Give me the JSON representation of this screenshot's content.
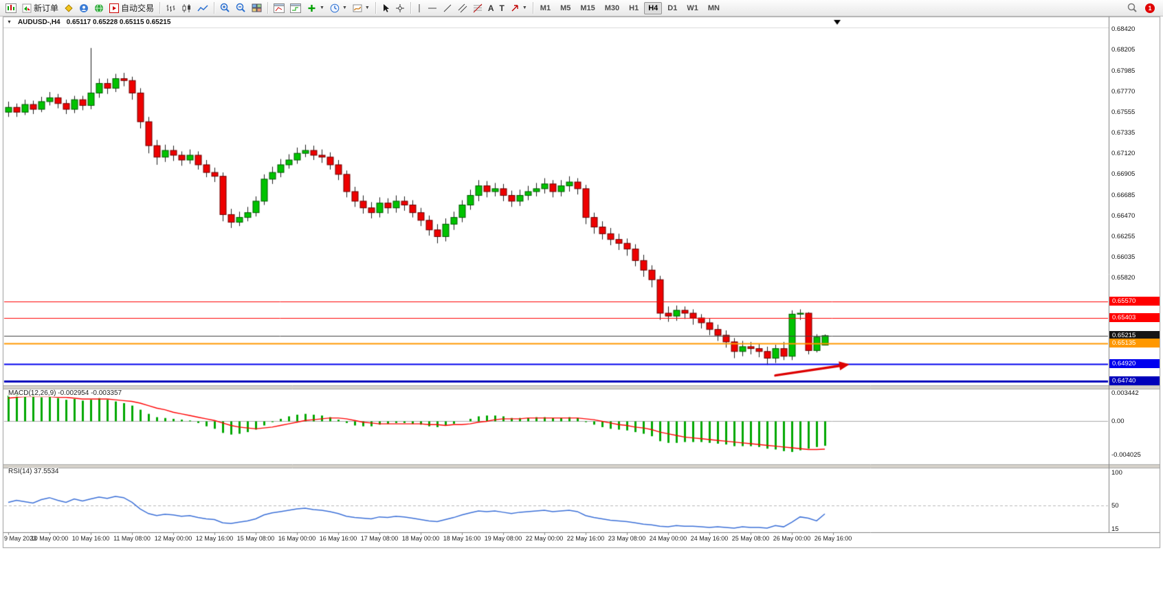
{
  "toolbar": {
    "new_order_label": "新订单",
    "auto_trading_label": "自动交易",
    "text_tool_label": "A",
    "label_tool_label": "T",
    "timeframes": [
      "M1",
      "M5",
      "M15",
      "M30",
      "H1",
      "H4",
      "D1",
      "W1",
      "MN"
    ],
    "active_timeframe": "H4",
    "notification_count": "1"
  },
  "chart": {
    "symbol_period": "AUDUSD-,H4",
    "ohlc_values": "0.65117 0.65228 0.65115 0.65215"
  },
  "price_axis": {
    "grid_labels": [
      "0.68420",
      "0.68205",
      "0.67985",
      "0.67770",
      "0.67555",
      "0.67335",
      "0.67120",
      "0.66905",
      "0.66685",
      "0.66470",
      "0.66255",
      "0.66035",
      "0.65820"
    ],
    "level_boxes": [
      {
        "text": "0.65570",
        "bg": "#ff0000"
      },
      {
        "text": "0.65403",
        "bg": "#ff0000"
      },
      {
        "text": "0.65215",
        "bg": "#151515"
      },
      {
        "text": "0.65135",
        "bg": "#ff9800"
      },
      {
        "text": "0.64920",
        "bg": "#0000ee"
      },
      {
        "text": "0.64740",
        "bg": "#0000bb"
      }
    ]
  },
  "indicators": {
    "macd_label": "MACD(12,26,9) -0.002954 -0.003357",
    "macd_scale": [
      "0.003442",
      "0.00",
      "-0.004025"
    ],
    "rsi_label": "RSI(14) 37.5534",
    "rsi_scale": [
      "100",
      "50",
      "15"
    ]
  },
  "time_axis": [
    "9 May 2023",
    "10 May 00:00",
    "10 May 16:00",
    "11 May 08:00",
    "12 May 00:00",
    "12 May 16:00",
    "15 May 08:00",
    "16 May 00:00",
    "16 May 16:00",
    "17 May 08:00",
    "18 May 00:00",
    "18 May 16:00",
    "19 May 08:00",
    "22 May 00:00",
    "22 May 16:00",
    "23 May 08:00",
    "24 May 00:00",
    "24 May 16:00",
    "25 May 08:00",
    "26 May 00:00",
    "26 May 16:00"
  ],
  "chart_data": {
    "type": "candlestick",
    "symbol": "AUDUSD-",
    "timeframe": "H4",
    "price_range": [
      0.6474,
      0.6842
    ],
    "current_bid": 0.65215,
    "top_marker_candle": 100.5,
    "candles": [
      [
        0.6755,
        0.6766,
        0.675,
        0.676
      ],
      [
        0.676,
        0.6764,
        0.675,
        0.6755
      ],
      [
        0.6755,
        0.6768,
        0.6752,
        0.6763
      ],
      [
        0.6763,
        0.6767,
        0.6753,
        0.6758
      ],
      [
        0.6758,
        0.6771,
        0.6755,
        0.6766
      ],
      [
        0.6766,
        0.6776,
        0.6762,
        0.677
      ],
      [
        0.677,
        0.6774,
        0.6759,
        0.6764
      ],
      [
        0.6764,
        0.6768,
        0.6753,
        0.6758
      ],
      [
        0.6758,
        0.6772,
        0.6754,
        0.6768
      ],
      [
        0.6768,
        0.6772,
        0.6757,
        0.6762
      ],
      [
        0.6762,
        0.6822,
        0.6758,
        0.6775
      ],
      [
        0.6775,
        0.679,
        0.677,
        0.6785
      ],
      [
        0.6785,
        0.679,
        0.6774,
        0.678
      ],
      [
        0.678,
        0.6795,
        0.6776,
        0.679
      ],
      [
        0.679,
        0.6796,
        0.6782,
        0.6788
      ],
      [
        0.6788,
        0.6792,
        0.6768,
        0.6775
      ],
      [
        0.6775,
        0.678,
        0.6738,
        0.6745
      ],
      [
        0.6745,
        0.675,
        0.6712,
        0.672
      ],
      [
        0.672,
        0.6726,
        0.67,
        0.6708
      ],
      [
        0.6708,
        0.6721,
        0.6703,
        0.6715
      ],
      [
        0.6715,
        0.672,
        0.6704,
        0.671
      ],
      [
        0.671,
        0.6714,
        0.6699,
        0.6705
      ],
      [
        0.6705,
        0.6716,
        0.6701,
        0.671
      ],
      [
        0.671,
        0.6714,
        0.6695,
        0.67
      ],
      [
        0.67,
        0.6705,
        0.6687,
        0.6692
      ],
      [
        0.6692,
        0.6697,
        0.6682,
        0.6688
      ],
      [
        0.6688,
        0.6692,
        0.6641,
        0.6648
      ],
      [
        0.6648,
        0.6654,
        0.6634,
        0.664
      ],
      [
        0.664,
        0.6651,
        0.6636,
        0.6645
      ],
      [
        0.6645,
        0.6656,
        0.6641,
        0.665
      ],
      [
        0.665,
        0.6667,
        0.6646,
        0.6662
      ],
      [
        0.6662,
        0.669,
        0.6658,
        0.6685
      ],
      [
        0.6685,
        0.6698,
        0.668,
        0.6692
      ],
      [
        0.6692,
        0.6706,
        0.6687,
        0.67
      ],
      [
        0.67,
        0.6711,
        0.6696,
        0.6705
      ],
      [
        0.6705,
        0.6718,
        0.6701,
        0.6712
      ],
      [
        0.6712,
        0.6721,
        0.6708,
        0.6715
      ],
      [
        0.6715,
        0.672,
        0.6705,
        0.671
      ],
      [
        0.671,
        0.6716,
        0.6702,
        0.6708
      ],
      [
        0.6708,
        0.6713,
        0.6695,
        0.67
      ],
      [
        0.67,
        0.6705,
        0.6684,
        0.669
      ],
      [
        0.669,
        0.6694,
        0.6666,
        0.6672
      ],
      [
        0.6672,
        0.6677,
        0.6656,
        0.6662
      ],
      [
        0.6662,
        0.6668,
        0.6649,
        0.6655
      ],
      [
        0.6655,
        0.6661,
        0.6644,
        0.665
      ],
      [
        0.665,
        0.6666,
        0.6645,
        0.666
      ],
      [
        0.666,
        0.6665,
        0.6649,
        0.6655
      ],
      [
        0.6655,
        0.6668,
        0.665,
        0.6662
      ],
      [
        0.6662,
        0.6667,
        0.6652,
        0.6658
      ],
      [
        0.6658,
        0.6663,
        0.6645,
        0.665
      ],
      [
        0.665,
        0.6655,
        0.6636,
        0.6642
      ],
      [
        0.6642,
        0.6647,
        0.6626,
        0.6632
      ],
      [
        0.6632,
        0.6638,
        0.6618,
        0.6625
      ],
      [
        0.6625,
        0.6644,
        0.662,
        0.6638
      ],
      [
        0.6638,
        0.6651,
        0.6632,
        0.6645
      ],
      [
        0.6645,
        0.6663,
        0.664,
        0.6658
      ],
      [
        0.6658,
        0.6674,
        0.6653,
        0.6668
      ],
      [
        0.6668,
        0.6684,
        0.6662,
        0.6678
      ],
      [
        0.6678,
        0.6683,
        0.6666,
        0.6672
      ],
      [
        0.6672,
        0.6681,
        0.6667,
        0.6675
      ],
      [
        0.6675,
        0.668,
        0.6662,
        0.6668
      ],
      [
        0.6668,
        0.6673,
        0.6656,
        0.6662
      ],
      [
        0.6662,
        0.6674,
        0.6657,
        0.6668
      ],
      [
        0.6668,
        0.6678,
        0.6663,
        0.6672
      ],
      [
        0.6672,
        0.6681,
        0.6667,
        0.6675
      ],
      [
        0.6675,
        0.6686,
        0.667,
        0.668
      ],
      [
        0.668,
        0.6684,
        0.6666,
        0.6672
      ],
      [
        0.6672,
        0.6684,
        0.6667,
        0.6678
      ],
      [
        0.6678,
        0.6688,
        0.6672,
        0.6682
      ],
      [
        0.6682,
        0.6686,
        0.6669,
        0.6675
      ],
      [
        0.6675,
        0.6679,
        0.6638,
        0.6645
      ],
      [
        0.6645,
        0.665,
        0.6628,
        0.6635
      ],
      [
        0.6635,
        0.6641,
        0.6622,
        0.6628
      ],
      [
        0.6628,
        0.6634,
        0.6616,
        0.6622
      ],
      [
        0.6622,
        0.6628,
        0.6611,
        0.6618
      ],
      [
        0.6618,
        0.6623,
        0.6605,
        0.6612
      ],
      [
        0.6612,
        0.6617,
        0.6594,
        0.66
      ],
      [
        0.66,
        0.6606,
        0.6583,
        0.659
      ],
      [
        0.659,
        0.6595,
        0.6572,
        0.658
      ],
      [
        0.658,
        0.6584,
        0.6538,
        0.6545
      ],
      [
        0.6545,
        0.6552,
        0.6536,
        0.6542
      ],
      [
        0.6542,
        0.6553,
        0.6537,
        0.6548
      ],
      [
        0.6548,
        0.6552,
        0.6539,
        0.6545
      ],
      [
        0.6545,
        0.6549,
        0.6533,
        0.654
      ],
      [
        0.654,
        0.6544,
        0.6529,
        0.6535
      ],
      [
        0.6535,
        0.654,
        0.6522,
        0.6528
      ],
      [
        0.6528,
        0.6533,
        0.6516,
        0.6522
      ],
      [
        0.6522,
        0.6527,
        0.6509,
        0.6515
      ],
      [
        0.6515,
        0.6519,
        0.6498,
        0.6505
      ],
      [
        0.6505,
        0.6516,
        0.65,
        0.651
      ],
      [
        0.651,
        0.6515,
        0.6502,
        0.6508
      ],
      [
        0.6508,
        0.6513,
        0.6499,
        0.6505
      ],
      [
        0.6505,
        0.651,
        0.6491,
        0.6498
      ],
      [
        0.6498,
        0.6512,
        0.6493,
        0.6508
      ],
      [
        0.6508,
        0.6515,
        0.6496,
        0.65
      ],
      [
        0.65,
        0.6548,
        0.6496,
        0.6544
      ],
      [
        0.6544,
        0.6549,
        0.6538,
        0.6545
      ],
      [
        0.6545,
        0.6546,
        0.6502,
        0.6506
      ],
      [
        0.6506,
        0.6523,
        0.6504,
        0.652
      ],
      [
        0.65117,
        0.65228,
        0.65115,
        0.65215
      ]
    ],
    "hlines": [
      {
        "price": 0.6557,
        "color": "#ff0000",
        "width": 1,
        "style": "solid"
      },
      {
        "price": 0.65403,
        "color": "#ff0000",
        "width": 1,
        "style": "solid"
      },
      {
        "price": 0.65215,
        "color": "#404040",
        "width": 1,
        "style": "solid"
      },
      {
        "price": 0.65135,
        "color": "#ff9800",
        "width": 2,
        "style": "solid"
      },
      {
        "price": 0.6492,
        "color": "#0000ee",
        "width": 2,
        "style": "solid"
      },
      {
        "price": 0.6474,
        "color": "#0000bb",
        "width": 3,
        "style": "solid"
      }
    ],
    "arrow_annotation": {
      "from_candle": 93,
      "from_price": 0.648,
      "to_candle": 102,
      "to_price": 0.64915,
      "color": "#dd0000"
    },
    "macd": {
      "range": [
        -0.004025,
        0.003442
      ],
      "histogram": [
        0.0031,
        0.0033,
        0.003,
        0.0032,
        0.0029,
        0.003,
        0.0028,
        0.0026,
        0.0027,
        0.0025,
        0.0026,
        0.0028,
        0.0026,
        0.0024,
        0.0022,
        0.0019,
        0.0014,
        0.0009,
        0.0005,
        0.0004,
        0.0003,
        0.0002,
        0.0001,
        -0.0002,
        -0.0006,
        -0.0009,
        -0.0014,
        -0.0016,
        -0.0015,
        -0.0013,
        -0.001,
        -0.0005,
        -0.0001,
        0.0003,
        0.0006,
        0.0008,
        0.0009,
        0.0008,
        0.0007,
        0.0005,
        0.0002,
        -0.0002,
        -0.0005,
        -0.0006,
        -0.0006,
        -0.0004,
        -0.0003,
        -0.0002,
        -0.0002,
        -0.0003,
        -0.0004,
        -0.0006,
        -0.0007,
        -0.0005,
        -0.0003,
        0.0,
        0.0003,
        0.0006,
        0.0007,
        0.0007,
        0.0006,
        0.0004,
        0.0004,
        0.0004,
        0.0005,
        0.0005,
        0.0004,
        0.0004,
        0.0005,
        0.0004,
        -0.0001,
        -0.0004,
        -0.0007,
        -0.0009,
        -0.001,
        -0.0011,
        -0.0013,
        -0.0015,
        -0.0018,
        -0.0024,
        -0.0026,
        -0.0026,
        -0.0025,
        -0.0025,
        -0.0025,
        -0.0026,
        -0.0027,
        -0.0028,
        -0.003,
        -0.003,
        -0.003,
        -0.0031,
        -0.0033,
        -0.0034,
        -0.0036,
        -0.0037,
        -0.0035,
        -0.0033,
        -0.0031,
        -0.002954
      ],
      "signal": [
        0.0028,
        0.0029,
        0.003,
        0.003,
        0.003,
        0.003,
        0.0029,
        0.0029,
        0.0028,
        0.0027,
        0.0027,
        0.0027,
        0.0027,
        0.0026,
        0.0025,
        0.0024,
        0.0022,
        0.0019,
        0.0016,
        0.0014,
        0.0011,
        0.0009,
        0.0007,
        0.0005,
        0.0003,
        0.0001,
        -0.0002,
        -0.0005,
        -0.0007,
        -0.0008,
        -0.0009,
        -0.0008,
        -0.0007,
        -0.0005,
        -0.0003,
        -0.0001,
        0.0001,
        0.0002,
        0.0003,
        0.0004,
        0.0004,
        0.0003,
        0.0001,
        -0.0001,
        -0.0002,
        -0.0003,
        -0.0003,
        -0.0003,
        -0.0003,
        -0.0003,
        -0.0003,
        -0.0004,
        -0.0004,
        -0.0005,
        -0.0004,
        -0.0004,
        -0.0003,
        -0.0001,
        0.0,
        0.0002,
        0.0003,
        0.0003,
        0.0003,
        0.0004,
        0.0004,
        0.0004,
        0.0004,
        0.0004,
        0.0004,
        0.0004,
        0.0003,
        0.0002,
        0.0,
        -0.0002,
        -0.0004,
        -0.0005,
        -0.0007,
        -0.0008,
        -0.001,
        -0.0013,
        -0.0015,
        -0.0017,
        -0.0019,
        -0.002,
        -0.0021,
        -0.0022,
        -0.0023,
        -0.0024,
        -0.0025,
        -0.0026,
        -0.0027,
        -0.0028,
        -0.0029,
        -0.003,
        -0.0031,
        -0.0032,
        -0.0033,
        -0.0034,
        -0.0034,
        -0.003357
      ]
    },
    "rsi": {
      "range": [
        15,
        100
      ],
      "level": 50,
      "values": [
        55,
        58,
        56,
        54,
        59,
        62,
        58,
        55,
        60,
        57,
        60,
        63,
        61,
        64,
        62,
        55,
        45,
        38,
        35,
        37,
        36,
        34,
        35,
        32,
        30,
        29,
        24,
        23,
        25,
        27,
        30,
        36,
        39,
        41,
        43,
        45,
        46,
        44,
        43,
        41,
        38,
        34,
        32,
        31,
        30,
        33,
        32,
        34,
        33,
        31,
        29,
        27,
        26,
        29,
        32,
        36,
        39,
        42,
        41,
        42,
        40,
        38,
        40,
        41,
        42,
        43,
        41,
        42,
        43,
        41,
        35,
        32,
        30,
        28,
        27,
        26,
        24,
        22,
        21,
        19,
        18,
        20,
        19,
        19,
        18,
        17,
        18,
        17,
        16,
        18,
        17,
        17,
        16,
        20,
        18,
        25,
        33,
        31,
        27,
        37.55
      ]
    }
  }
}
